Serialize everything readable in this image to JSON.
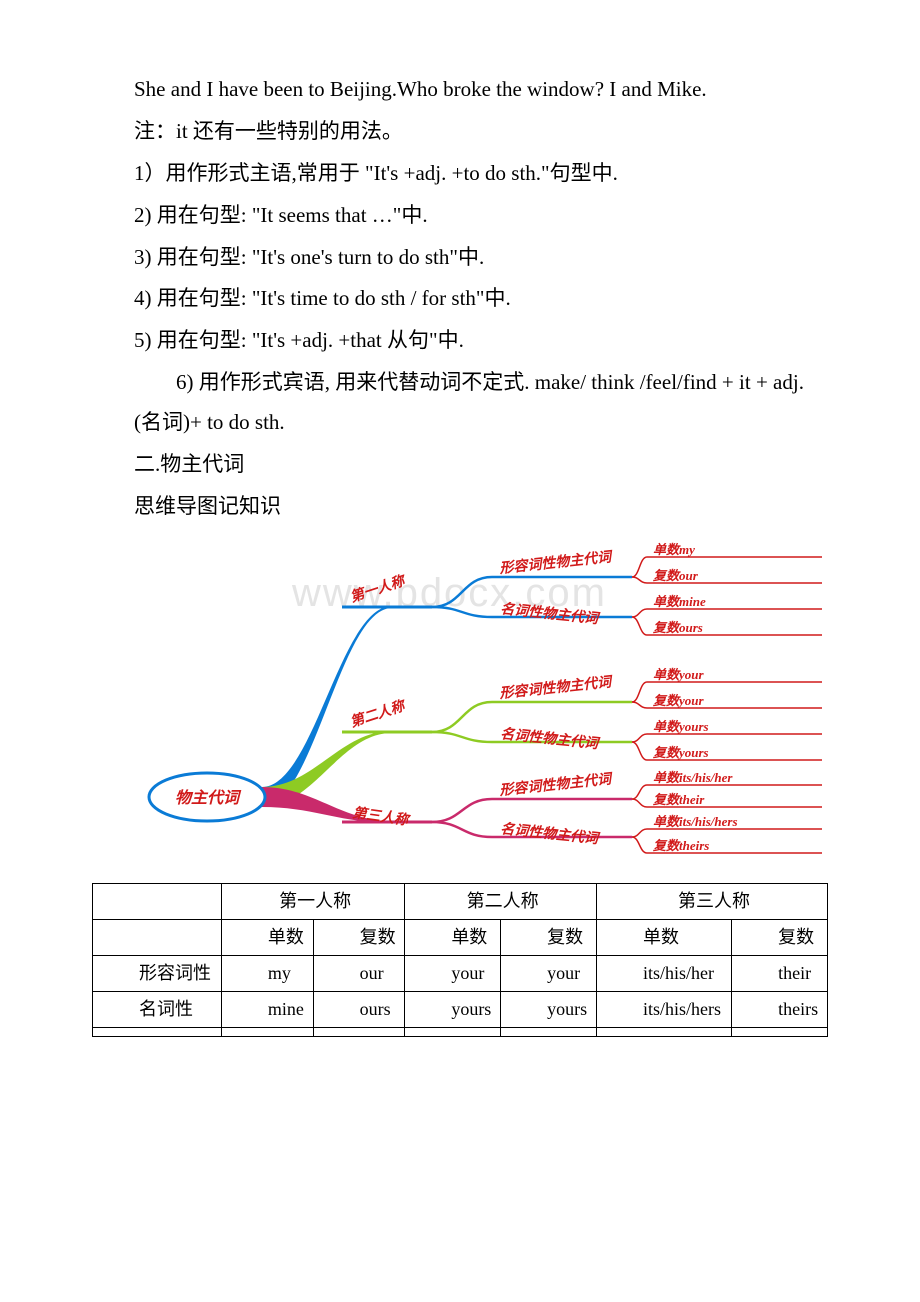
{
  "lines": {
    "l1": "She and I have been to Beijing.Who broke the window? I and Mike.",
    "l2": "注：it 还有一些特别的用法。",
    "l3": "1）用作形式主语,常用于 \"It's +adj. +to do sth.\"句型中.",
    "l4": "2) 用在句型: \"It seems that …\"中.",
    "l5": "3) 用在句型: \"It's one's turn to do sth\"中.",
    "l6": "4) 用在句型: \"It's time to do sth / for sth\"中.",
    "l7": "5) 用在句型: \"It's +adj. +that 从句\"中.",
    "l8": "6) 用作形式宾语, 用来代替动词不定式. make/ think /feel/find + it + adj. (名词)+ to do sth.",
    "l9": "二.物主代词",
    "l10": "思维导图记知识"
  },
  "diagram": {
    "watermark": "www.bdocx.com",
    "root": "物主代词",
    "person1": "第一人称",
    "person2": "第二人称",
    "person3": "第三人称",
    "adj_pron": "形容词性物主代词",
    "noun_pron": "名词性物主代词",
    "leaves": {
      "p1_adj_s": "单数my",
      "p1_adj_p": "复数our",
      "p1_noun_s": "单数mine",
      "p1_noun_p": "复数ours",
      "p2_adj_s": "单数your",
      "p2_adj_p": "复数your",
      "p2_noun_s": "单数yours",
      "p2_noun_p": "复数yours",
      "p3_adj_s": "单数its/his/her",
      "p3_adj_p": "复数their",
      "p3_noun_s": "单数its/his/hers",
      "p3_noun_p": "复数theirs"
    },
    "colors": {
      "root_fill": "#ffffff",
      "root_stroke": "#0a7bd6",
      "root_text": "#d11a1a",
      "p1_branch": "#0a7bd6",
      "p2_branch": "#8ecb23",
      "p3_branch": "#c92a6b",
      "mid_text": "#d11a1a",
      "leaf_branch": "#d11a1a",
      "leaf_text": "#d11a1a"
    },
    "leaf_fontsize": 13,
    "mid_fontsize": 14,
    "person_fontsize": 14,
    "root_fontsize": 16
  },
  "table": {
    "headers": {
      "p1": "第一人称",
      "p2": "第二人称",
      "p3": "第三人称"
    },
    "sub": {
      "s": "单数",
      "p": "复数"
    },
    "rows": {
      "adj": {
        "label": "形容词性",
        "c": [
          "my",
          "our",
          "your",
          "your",
          "its/his/her",
          "their"
        ]
      },
      "noun": {
        "label": "名词性",
        "c": [
          "mine",
          "ours",
          "yours",
          "yours",
          "its/his/hers",
          "theirs"
        ]
      }
    }
  }
}
